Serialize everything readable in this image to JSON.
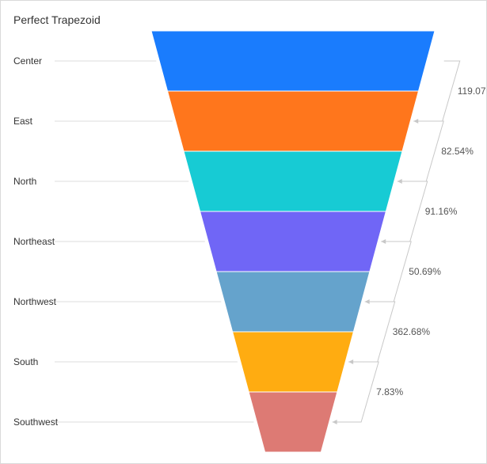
{
  "chart_data": {
    "type": "funnel",
    "title": "Perfect Trapezoid",
    "categories": [
      "Center",
      "East",
      "North",
      "Northeast",
      "Northwest",
      "South",
      "Southwest"
    ],
    "conversion_labels": [
      "119.07%",
      "82.54%",
      "91.16%",
      "50.69%",
      "362.68%",
      "7.83%"
    ],
    "colors": [
      "#1a7cfd",
      "#ff761c",
      "#17cbd4",
      "#7066f6",
      "#65a3cc",
      "#ffac11",
      "#dd7a74"
    ],
    "grid": false,
    "legend": "none"
  }
}
